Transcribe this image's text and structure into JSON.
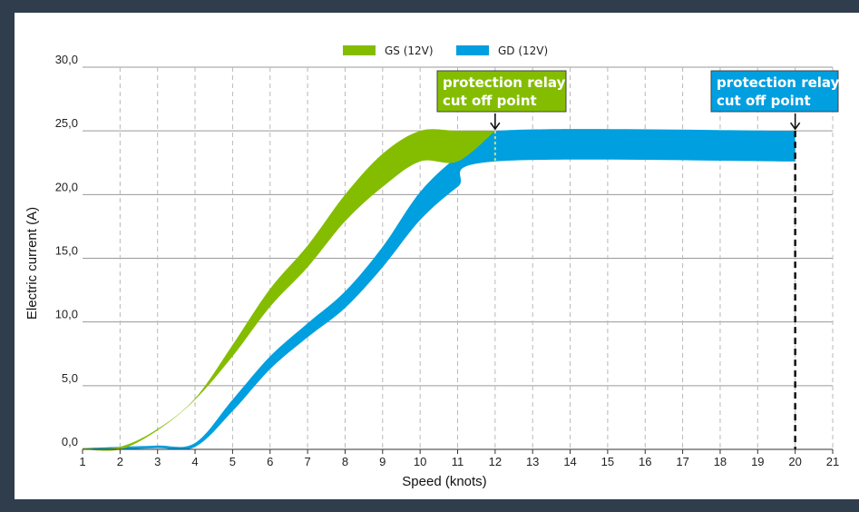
{
  "chart_data": {
    "type": "area",
    "xlabel": "Speed (knots)",
    "ylabel": "Electric current (A)",
    "xlim": [
      1,
      21
    ],
    "ylim": [
      0,
      30
    ],
    "x_ticks": [
      "1",
      "2",
      "3",
      "4",
      "5",
      "6",
      "7",
      "8",
      "9",
      "10",
      "11",
      "12",
      "13",
      "14",
      "15",
      "16",
      "17",
      "18",
      "19",
      "20",
      "21"
    ],
    "y_ticks": [
      "0,0",
      "5,0",
      "10,0",
      "15,0",
      "20,0",
      "25,0",
      "30,0"
    ],
    "grid": true,
    "legend_position": "top-center",
    "series": [
      {
        "name": "GS (12V)",
        "color": "#84bd00",
        "upper": [
          [
            1,
            0.1
          ],
          [
            2,
            0.2
          ],
          [
            3,
            1.6
          ],
          [
            4,
            4.0
          ],
          [
            5,
            8.2
          ],
          [
            6,
            12.6
          ],
          [
            7,
            16.0
          ],
          [
            8,
            20.0
          ],
          [
            9,
            23.2
          ],
          [
            10,
            25.0
          ],
          [
            11,
            25.0
          ],
          [
            12,
            25.0
          ]
        ],
        "lower": [
          [
            1,
            0.0
          ],
          [
            2,
            0.0
          ],
          [
            3,
            1.5
          ],
          [
            4,
            3.9
          ],
          [
            5,
            7.3
          ],
          [
            6,
            11.2
          ],
          [
            7,
            14.3
          ],
          [
            8,
            17.9
          ],
          [
            9,
            20.6
          ],
          [
            10,
            22.6
          ],
          [
            11,
            22.6
          ],
          [
            12,
            25.0
          ]
        ]
      },
      {
        "name": "GD (12V)",
        "color": "#009fdf",
        "upper": [
          [
            1,
            0.1
          ],
          [
            2,
            0.2
          ],
          [
            3,
            0.3
          ],
          [
            4,
            0.5
          ],
          [
            5,
            3.9
          ],
          [
            6,
            7.3
          ],
          [
            7,
            9.9
          ],
          [
            8,
            12.4
          ],
          [
            9,
            15.9
          ],
          [
            10,
            20.2
          ],
          [
            11,
            23.0
          ],
          [
            12,
            25.0
          ],
          [
            20,
            25.0
          ]
        ],
        "lower": [
          [
            1,
            0.0
          ],
          [
            2,
            0.0
          ],
          [
            3,
            0.1
          ],
          [
            4,
            0.2
          ],
          [
            5,
            3.0
          ],
          [
            6,
            6.3
          ],
          [
            7,
            8.8
          ],
          [
            8,
            11.1
          ],
          [
            9,
            14.3
          ],
          [
            10,
            18.0
          ],
          [
            11,
            20.6
          ],
          [
            12,
            22.6
          ],
          [
            20,
            22.6
          ]
        ]
      }
    ],
    "annotations": [
      {
        "text_line1": "protection relay",
        "text_line2": "cut off point",
        "x": 12,
        "color": "#84bd00"
      },
      {
        "text_line1": "protection relay",
        "text_line2": "cut off point",
        "x": 20,
        "color": "#009fdf"
      }
    ]
  }
}
